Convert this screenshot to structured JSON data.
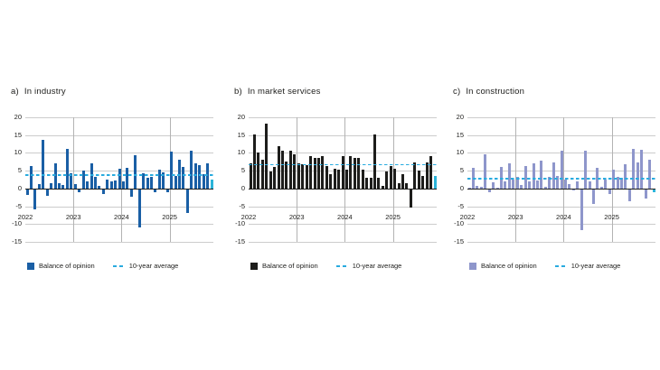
{
  "figure": {
    "background": "#ffffff",
    "ylim": [
      -15,
      20
    ],
    "y_ticks": [
      20,
      15,
      10,
      5,
      0,
      -5,
      -10,
      -15
    ],
    "x_tick_labels": [
      "2022",
      "2023",
      "2024",
      "2025"
    ]
  },
  "legend": {
    "balance_label": "Balance of opinion",
    "average_label": "10-year average"
  },
  "colors": {
    "grid": "#cccccc",
    "year_grid": "#b3b3b3",
    "zero_axis": "#1d1d1b",
    "average_line": "#29abdf",
    "latest_bar": "#2bb4d9",
    "text": "#1d1d1b"
  },
  "chart_data": [
    {
      "type": "bar",
      "label": "a)",
      "title": "In industry",
      "bar_color": "#1a5fa5",
      "average": 3.8,
      "ylim": [
        -15,
        20
      ],
      "x_tick_labels": [
        "2022",
        "2023",
        "2024",
        "2025"
      ],
      "frequency": "monthly",
      "values": [
        -1.5,
        6.3,
        -5.5,
        1.2,
        13.7,
        -1.8,
        1.6,
        7.0,
        1.5,
        1.0,
        11.0,
        4.3,
        1.2,
        -0.7,
        5.0,
        1.9,
        7.0,
        3.3,
        0.7,
        -1.2,
        2.6,
        2.1,
        2.3,
        5.6,
        1.9,
        5.9,
        -2.0,
        9.3,
        -10.6,
        4.2,
        3.0,
        3.3,
        -0.7,
        5.3,
        4.5,
        -0.9,
        10.4,
        3.5,
        8.0,
        6.0,
        -6.7,
        10.7,
        7.0,
        6.6,
        4.0,
        7.0,
        2.4
      ]
    },
    {
      "type": "bar",
      "label": "b)",
      "title": "In market services",
      "bar_color": "#1d1d1b",
      "average": 6.7,
      "ylim": [
        -15,
        20
      ],
      "x_tick_labels": [
        "2022",
        "2023",
        "2024",
        "2025"
      ],
      "frequency": "monthly",
      "values": [
        7.0,
        15.3,
        10.0,
        8.2,
        18.3,
        4.8,
        6.0,
        11.8,
        10.5,
        7.5,
        10.7,
        9.5,
        7.0,
        6.8,
        6.5,
        9.0,
        8.5,
        8.7,
        9.0,
        6.3,
        4.0,
        5.6,
        5.2,
        9.2,
        5.4,
        9.2,
        8.7,
        8.7,
        5.2,
        2.9,
        2.9,
        15.2,
        2.9,
        0.6,
        4.7,
        6.2,
        5.6,
        1.4,
        3.9,
        1.4,
        -5.0,
        7.3,
        5.1,
        3.6,
        7.3,
        9.2,
        3.4
      ]
    },
    {
      "type": "bar",
      "label": "c)",
      "title": "In construction",
      "bar_color": "#8e96cb",
      "average": 2.8,
      "ylim": [
        -15,
        20
      ],
      "x_tick_labels": [
        "2022",
        "2023",
        "2024",
        "2025"
      ],
      "frequency": "monthly",
      "values": [
        0.3,
        5.8,
        0.7,
        0.4,
        9.6,
        -0.9,
        1.8,
        0.3,
        6.1,
        2.0,
        7.0,
        2.6,
        3.3,
        1.0,
        6.3,
        2.0,
        7.0,
        2.3,
        7.8,
        0.4,
        3.3,
        7.4,
        3.6,
        10.5,
        2.4,
        1.2,
        -0.4,
        1.9,
        -11.5,
        10.5,
        1.9,
        -4.0,
        5.7,
        0.5,
        2.4,
        -1.2,
        5.3,
        3.3,
        3.0,
        6.9,
        -3.3,
        11.0,
        7.2,
        10.8,
        -2.6,
        8.0,
        -0.7
      ]
    }
  ]
}
